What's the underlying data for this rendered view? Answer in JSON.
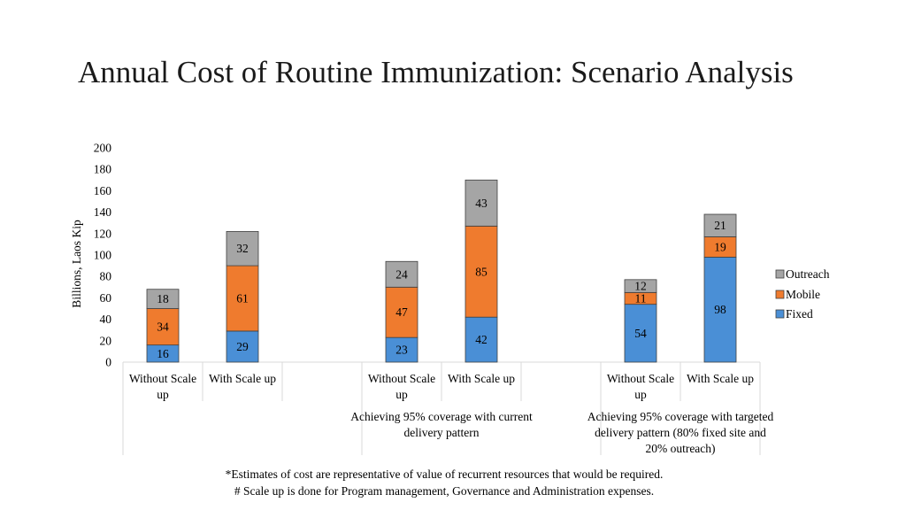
{
  "title": "Annual Cost of Routine Immunization: Scenario Analysis",
  "footnotes": [
    "*Estimates of cost are representative of value of recurrent resources that would be required.",
    "# Scale up is done for Program management, Governance and Administration expenses."
  ],
  "colors": {
    "fixed": "#4a8fd6",
    "mobile": "#ef7b2e",
    "outreach": "#a5a5a5"
  },
  "chart_data": {
    "type": "bar",
    "stacked": true,
    "ylabel": "Billions, Laos Kip",
    "ylim": [
      0,
      200
    ],
    "yticks": [
      0,
      20,
      40,
      60,
      80,
      100,
      120,
      140,
      160,
      180,
      200
    ],
    "grid": false,
    "legend_position": "right",
    "categories": [
      "Without Scale up",
      "With Scale up",
      "",
      "Without Scale up",
      "With Scale up",
      "",
      "Without Scale up",
      "With Scale up"
    ],
    "groups": [
      {
        "label": "",
        "span": [
          0,
          2
        ]
      },
      {
        "label": "Achieving 95% coverage with current delivery pattern",
        "span": [
          3,
          5
        ]
      },
      {
        "label": "Achieving 95% coverage with targeted delivery pattern (80% fixed site and 20% outreach)",
        "span": [
          6,
          8
        ]
      }
    ],
    "series": [
      {
        "name": "Fixed",
        "values": [
          16,
          29,
          null,
          23,
          42,
          null,
          54,
          98
        ]
      },
      {
        "name": "Mobile",
        "values": [
          34,
          61,
          null,
          47,
          85,
          null,
          11,
          19
        ]
      },
      {
        "name": "Outreach",
        "values": [
          18,
          32,
          null,
          24,
          43,
          null,
          12,
          21
        ]
      }
    ]
  }
}
